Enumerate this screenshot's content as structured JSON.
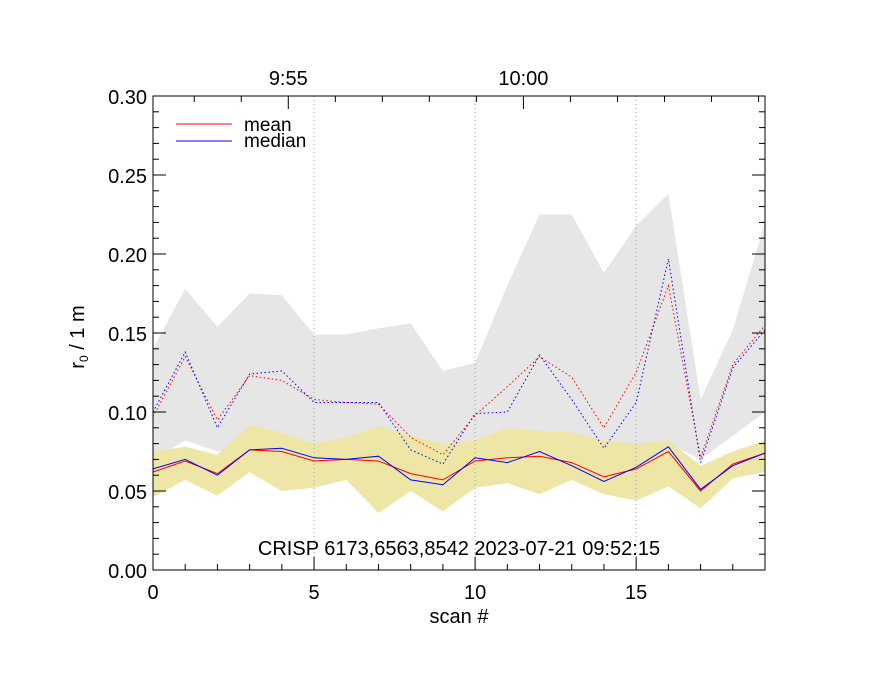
{
  "chart_data": {
    "type": "line",
    "annotation": "CRISP 6173,6563,8542 2023-07-21 09:52:15",
    "xlabel": "scan #",
    "ylabel_main": "r",
    "ylabel_sub": "0",
    "ylabel_rest": " / 1 m",
    "xlim": [
      0,
      19
    ],
    "ylim": [
      0,
      0.3
    ],
    "x_ticks": [
      0,
      5,
      10,
      15
    ],
    "x_tick_labels": [
      "0",
      "5",
      "10",
      "15"
    ],
    "y_ticks": [
      0,
      0.05,
      0.1,
      0.15,
      0.2,
      0.25,
      0.3
    ],
    "y_tick_labels": [
      "0.00",
      "0.05",
      "0.10",
      "0.15",
      "0.20",
      "0.25",
      "0.30"
    ],
    "top_axis": {
      "ticks": [
        4.2,
        11.5
      ],
      "tick_labels": [
        "9:55",
        "10:00"
      ]
    },
    "vertical_gridlines_x": [
      5,
      10,
      15
    ],
    "x": [
      0,
      1,
      2,
      3,
      4,
      5,
      6,
      7,
      8,
      9,
      10,
      11,
      12,
      13,
      14,
      15,
      16,
      17,
      18,
      19
    ],
    "bands": [
      {
        "name": "range-bright",
        "color": "#e6e6e6",
        "lower": [
          0.07,
          0.082,
          0.075,
          0.08,
          0.078,
          0.075,
          0.075,
          0.08,
          0.074,
          0.076,
          0.08,
          0.082,
          0.08,
          0.08,
          0.078,
          0.08,
          0.08,
          0.07,
          0.085,
          0.1
        ],
        "upper": [
          0.14,
          0.178,
          0.154,
          0.175,
          0.174,
          0.149,
          0.149,
          0.153,
          0.156,
          0.126,
          0.131,
          0.18,
          0.225,
          0.225,
          0.188,
          0.218,
          0.238,
          0.108,
          0.152,
          0.22
        ]
      },
      {
        "name": "range-core",
        "color": "#eee6a6",
        "lower": [
          0.046,
          0.057,
          0.047,
          0.062,
          0.05,
          0.052,
          0.057,
          0.036,
          0.05,
          0.037,
          0.052,
          0.055,
          0.048,
          0.057,
          0.048,
          0.044,
          0.053,
          0.039,
          0.058,
          0.062
        ],
        "upper": [
          0.075,
          0.078,
          0.073,
          0.092,
          0.087,
          0.08,
          0.084,
          0.091,
          0.085,
          0.08,
          0.082,
          0.09,
          0.088,
          0.087,
          0.082,
          0.08,
          0.082,
          0.066,
          0.075,
          0.082
        ]
      }
    ],
    "series": [
      {
        "name": "mean",
        "style": "solid",
        "color": "#ff0000",
        "values": [
          0.062,
          0.069,
          0.061,
          0.076,
          0.075,
          0.069,
          0.07,
          0.069,
          0.061,
          0.057,
          0.069,
          0.071,
          0.072,
          0.068,
          0.059,
          0.064,
          0.075,
          0.05,
          0.067,
          0.074
        ]
      },
      {
        "name": "median",
        "style": "solid",
        "color": "#0000ff",
        "values": [
          0.064,
          0.07,
          0.06,
          0.076,
          0.077,
          0.071,
          0.07,
          0.072,
          0.057,
          0.054,
          0.071,
          0.068,
          0.075,
          0.066,
          0.056,
          0.065,
          0.078,
          0.051,
          0.066,
          0.074
        ]
      },
      {
        "name": "mean-peak",
        "style": "dotted",
        "color": "#ff0000",
        "values": [
          0.097,
          0.135,
          0.095,
          0.123,
          0.12,
          0.108,
          0.106,
          0.105,
          0.084,
          0.073,
          0.098,
          0.116,
          0.135,
          0.122,
          0.09,
          0.125,
          0.18,
          0.071,
          0.13,
          0.155
        ]
      },
      {
        "name": "median-peak",
        "style": "dotted",
        "color": "#0000ff",
        "values": [
          0.1,
          0.138,
          0.09,
          0.124,
          0.126,
          0.106,
          0.106,
          0.106,
          0.076,
          0.067,
          0.099,
          0.1,
          0.136,
          0.108,
          0.077,
          0.106,
          0.197,
          0.068,
          0.128,
          0.152
        ]
      }
    ],
    "legend": {
      "placement": "top-left",
      "entries": [
        {
          "label": "mean",
          "color": "#ff0000"
        },
        {
          "label": "median",
          "color": "#0000ff"
        }
      ]
    }
  }
}
